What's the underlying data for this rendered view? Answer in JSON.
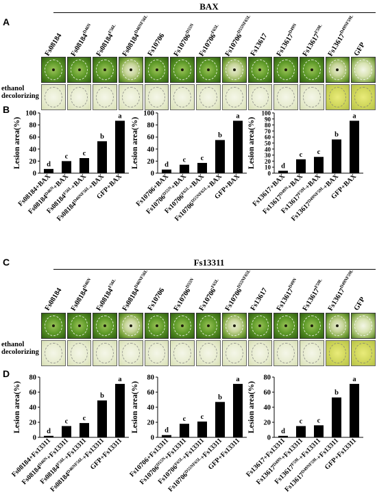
{
  "sections": [
    {
      "letter": "A",
      "title": "BAX",
      "columns": [
        {
          "base": "Fs08184",
          "sup": ""
        },
        {
          "base": "Fs08184",
          "sup": "D46N"
        },
        {
          "base": "Fs08184",
          "sup": "F56L"
        },
        {
          "base": "Fs08184",
          "sup": "D46NF56L"
        },
        {
          "base": "Fs10706",
          "sup": ""
        },
        {
          "base": "Fs10706",
          "sup": "D55N"
        },
        {
          "base": "Fs10706",
          "sup": "F65L"
        },
        {
          "base": "Fs10706",
          "sup": "D55NF65L"
        },
        {
          "base": "Fs13617",
          "sup": ""
        },
        {
          "base": "Fs13617",
          "sup": "D49N"
        },
        {
          "base": "Fs13617",
          "sup": "F59L"
        },
        {
          "base": "Fs13617",
          "sup": "D49NF59L"
        },
        {
          "base": "GFP",
          "sup": ""
        }
      ],
      "row_label_lines": [
        "ethanol",
        "decolorizing"
      ]
    },
    {
      "letter": "C",
      "title": "Fs13311",
      "columns": [
        {
          "base": "Fs08184",
          "sup": ""
        },
        {
          "base": "Fs08184",
          "sup": "D46N"
        },
        {
          "base": "Fs08184",
          "sup": "F56L"
        },
        {
          "base": "Fs08184",
          "sup": "D46NF56L"
        },
        {
          "base": "Fs10706",
          "sup": ""
        },
        {
          "base": "Fs10706",
          "sup": "D55N"
        },
        {
          "base": "Fs10706",
          "sup": "F65L"
        },
        {
          "base": "Fs10706",
          "sup": "D55NF65L"
        },
        {
          "base": "Fs13617",
          "sup": ""
        },
        {
          "base": "Fs13617",
          "sup": "D49N"
        },
        {
          "base": "Fs13617",
          "sup": "F59L"
        },
        {
          "base": "Fs13617",
          "sup": "D49NF59L"
        },
        {
          "base": "GFP",
          "sup": ""
        }
      ],
      "row_label_lines": [
        "ethanol",
        "decolorizing"
      ]
    }
  ],
  "chart_sections": [
    {
      "letter": "B"
    },
    {
      "letter": "D"
    }
  ],
  "chart_data": [
    {
      "type": "bar",
      "panel": "B",
      "ylabel": "Lesion area(%)",
      "ylim": [
        0,
        100
      ],
      "ticks": [
        0,
        20,
        40,
        60,
        80,
        100
      ],
      "categories": [
        [
          "Fs08184",
          "",
          "+BAX"
        ],
        [
          "Fs08184",
          "D46N",
          "+BAX"
        ],
        [
          "Fs08184",
          "F56L",
          "+BAX"
        ],
        [
          "Fs08184",
          "D46NF56L",
          "+BAX"
        ],
        [
          "GFP",
          "",
          "+BAX"
        ]
      ],
      "values": [
        7,
        20,
        25,
        53,
        87
      ],
      "letters": [
        "d",
        "c",
        "c",
        "b",
        "a"
      ]
    },
    {
      "type": "bar",
      "panel": "B",
      "ylabel": "Lesion area(%)",
      "ylim": [
        0,
        100
      ],
      "ticks": [
        0,
        20,
        40,
        60,
        80,
        100
      ],
      "categories": [
        [
          "Fs10706",
          "",
          "+BAX"
        ],
        [
          "Fs10706",
          "D55N",
          "+BAX"
        ],
        [
          "Fs10706",
          "F65L",
          "+BAX"
        ],
        [
          "Fs10706",
          "D55NF65L",
          "+BAX"
        ],
        [
          "GFP",
          "",
          "+BAX"
        ]
      ],
      "values": [
        6,
        14,
        17,
        55,
        87
      ],
      "letters": [
        "d",
        "c",
        "c",
        "b",
        "a"
      ]
    },
    {
      "type": "bar",
      "panel": "B",
      "ylabel": "Lesion area(%)",
      "ylim": [
        0,
        100
      ],
      "ticks": [
        0,
        10,
        20,
        30,
        40,
        50,
        60,
        70,
        80,
        90,
        100
      ],
      "categories": [
        [
          "Fs13617",
          "",
          "+BAX"
        ],
        [
          "Fs13617",
          "D49N",
          "+BAX"
        ],
        [
          "Fs13617",
          "F59L",
          "+BAX"
        ],
        [
          "Fs13617",
          "D49NF59L",
          "+BAX"
        ],
        [
          "GFP",
          "",
          "+BAX"
        ]
      ],
      "values": [
        4,
        23,
        27,
        56,
        87
      ],
      "letters": [
        "d",
        "c",
        "c",
        "b",
        "a"
      ]
    },
    {
      "type": "bar",
      "panel": "D",
      "ylabel": "Lesion area(%)",
      "ylim": [
        0,
        80
      ],
      "ticks": [
        0,
        20,
        40,
        60,
        80
      ],
      "categories": [
        [
          "Fs08184",
          "",
          "+Fs13311"
        ],
        [
          "Fs08184",
          "D46N",
          "+Fs13311"
        ],
        [
          "Fs08184",
          "F56L",
          "+Fs13311"
        ],
        [
          "Fs08184",
          "D46NF56L",
          "+Fs13311"
        ],
        [
          "GFP",
          "",
          "+Fs13311"
        ]
      ],
      "values": [
        2,
        15,
        19,
        49,
        71
      ],
      "letters": [
        "d",
        "c",
        "c",
        "b",
        "a"
      ]
    },
    {
      "type": "bar",
      "panel": "D",
      "ylabel": "Lesion area(%)",
      "ylim": [
        0,
        80
      ],
      "ticks": [
        0,
        20,
        40,
        60,
        80
      ],
      "categories": [
        [
          "Fs10706",
          "",
          "+Fs13311"
        ],
        [
          "Fs10706",
          "D55N",
          "+Fs13311"
        ],
        [
          "Fs10706",
          "F65L",
          "+Fs13311"
        ],
        [
          "Fs10706",
          "D55NF65L",
          "+Fs13311"
        ],
        [
          "GFP",
          "",
          "+Fs13311"
        ]
      ],
      "values": [
        3,
        18,
        21,
        47,
        71
      ],
      "letters": [
        "d",
        "c",
        "c",
        "b",
        "a"
      ]
    },
    {
      "type": "bar",
      "panel": "D",
      "ylabel": "Lesion area(%)",
      "ylim": [
        0,
        80
      ],
      "ticks": [
        0,
        20,
        40,
        60,
        80
      ],
      "categories": [
        [
          "Fs13617",
          "",
          "+Fs13311"
        ],
        [
          "Fs13617",
          "D49N",
          "+Fs13311"
        ],
        [
          "Fs13617",
          "F59L",
          "+Fs13311"
        ],
        [
          "Fs13617",
          "D49NF59L",
          "+Fs13311"
        ],
        [
          "GFP",
          "",
          "+Fs13311"
        ]
      ],
      "values": [
        2,
        15,
        16,
        53,
        71
      ],
      "letters": [
        "d",
        "c",
        "c",
        "b",
        "a"
      ]
    }
  ]
}
